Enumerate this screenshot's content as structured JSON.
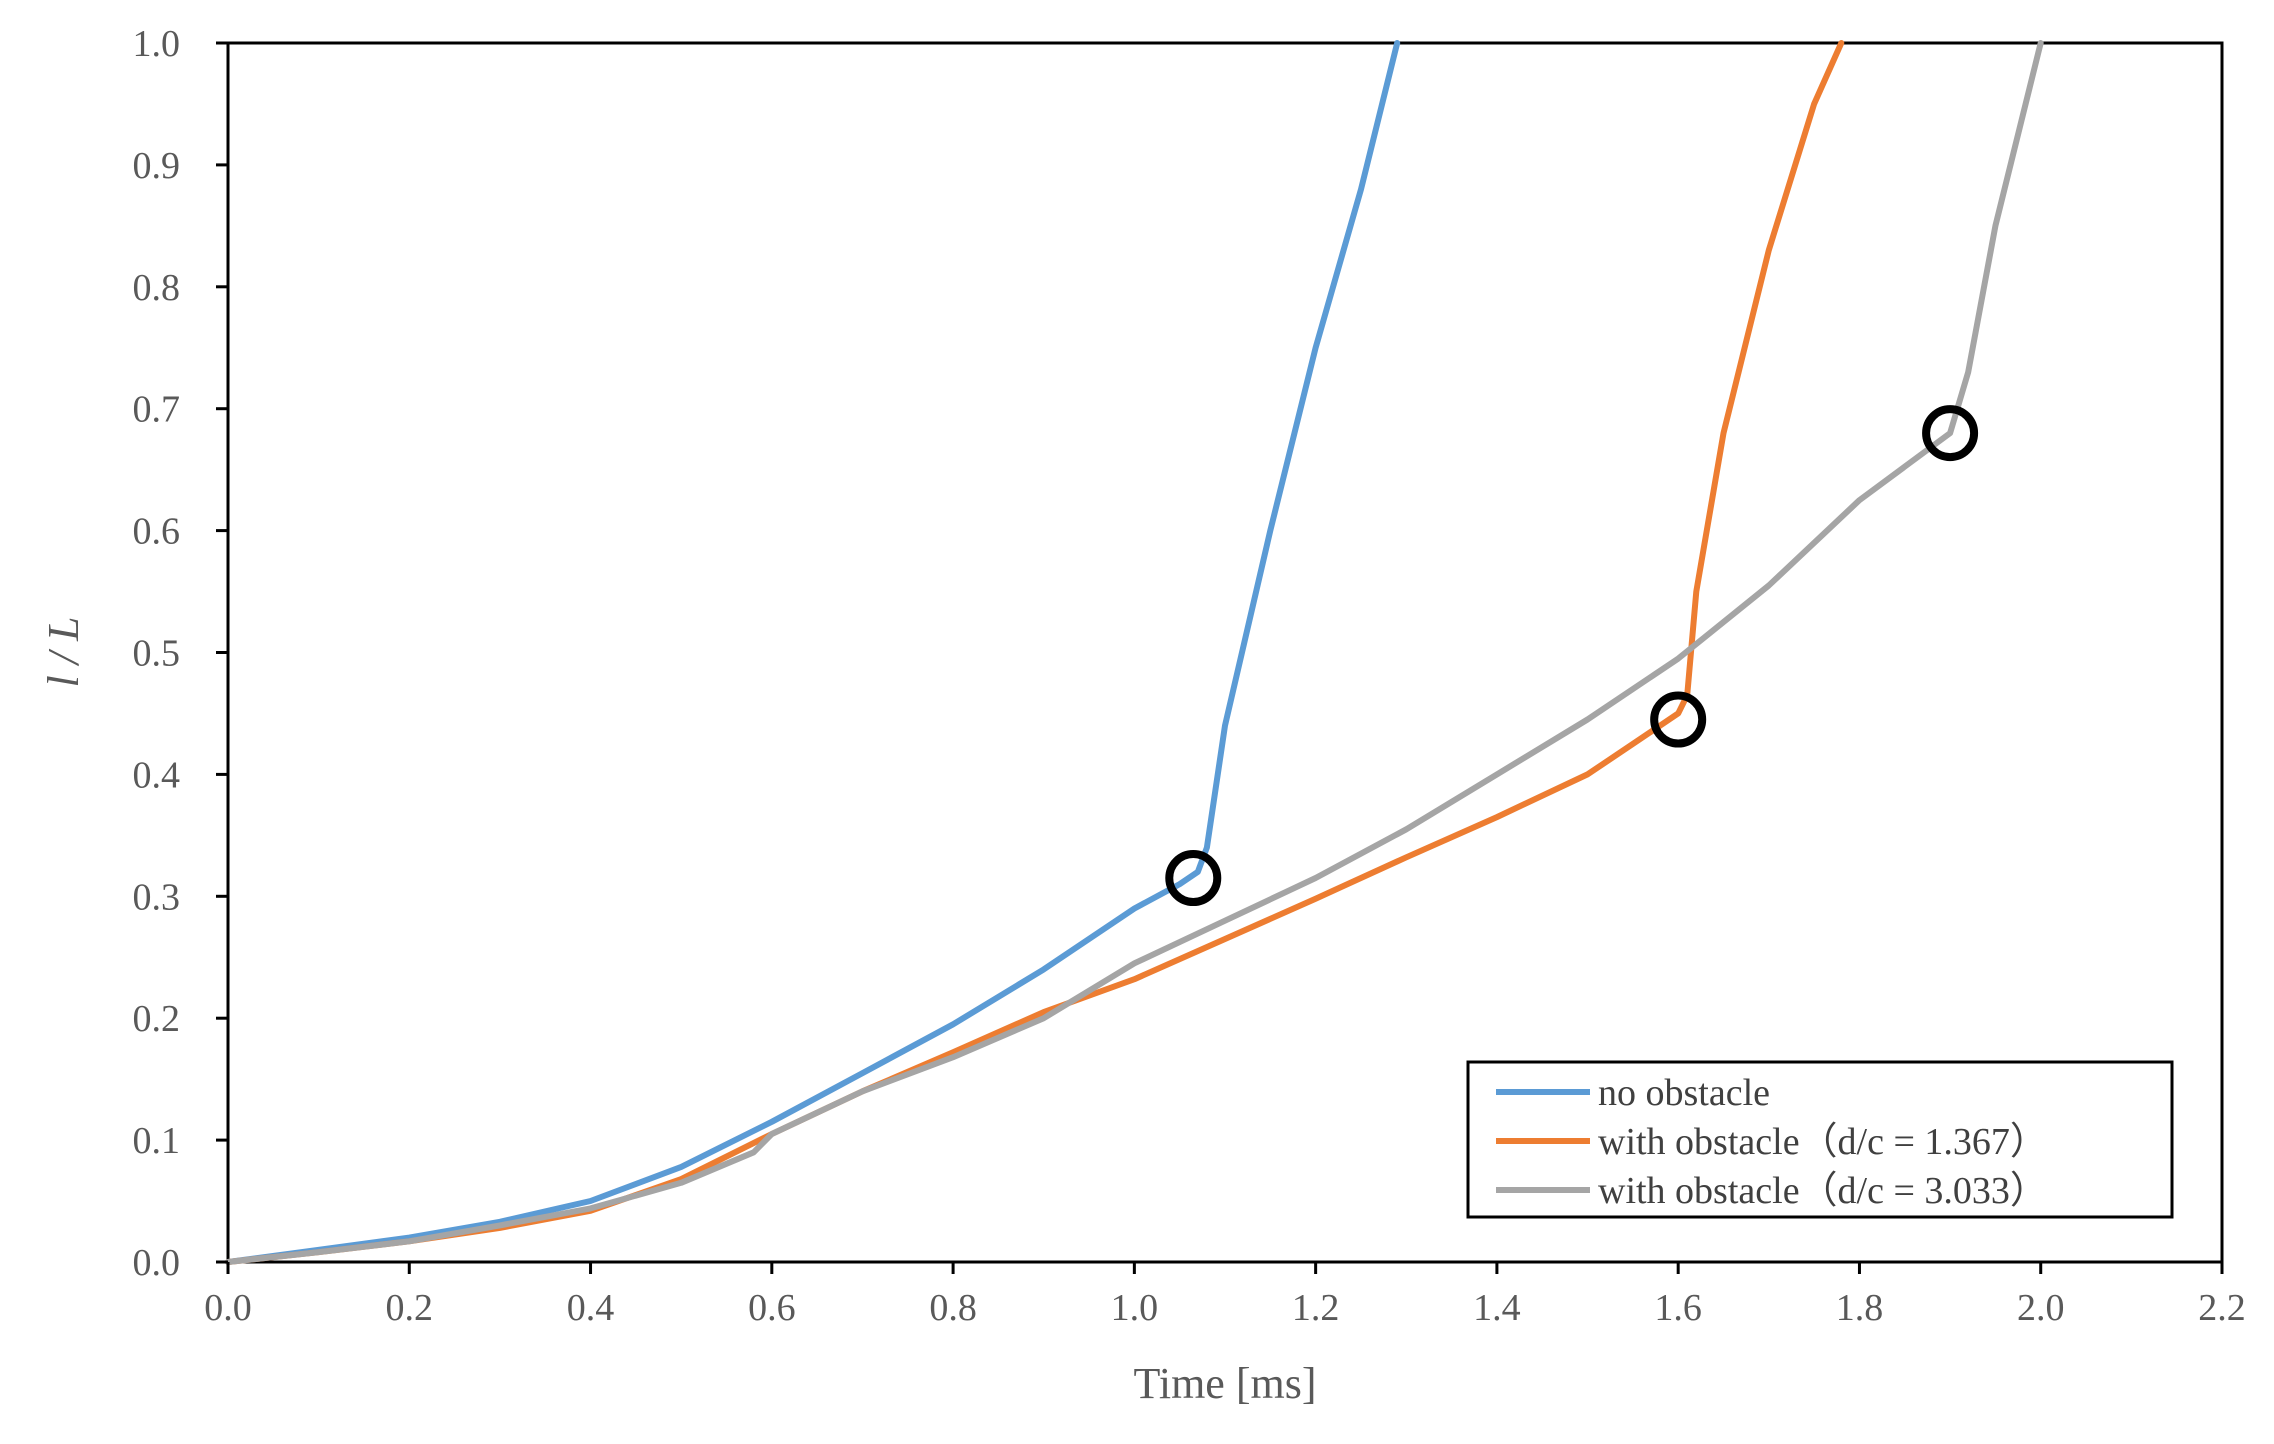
{
  "chart_data": {
    "type": "line",
    "xlabel": "Time [ms]",
    "ylabel": "l / L",
    "xlim": [
      0.0,
      2.2
    ],
    "ylim": [
      0.0,
      1.0
    ],
    "x_ticks": [
      "0.0",
      "0.2",
      "0.4",
      "0.6",
      "0.8",
      "1.0",
      "1.2",
      "1.4",
      "1.6",
      "1.8",
      "2.0",
      "2.2"
    ],
    "y_ticks": [
      "0.0",
      "0.1",
      "0.2",
      "0.3",
      "0.4",
      "0.5",
      "0.6",
      "0.7",
      "0.8",
      "0.9",
      "1.0"
    ],
    "grid": false,
    "legend_position": "bottom-right",
    "series": [
      {
        "name": "no obstacle",
        "color": "#5B9BD5",
        "x": [
          0.0,
          0.1,
          0.2,
          0.3,
          0.4,
          0.5,
          0.6,
          0.7,
          0.8,
          0.9,
          1.0,
          1.05,
          1.07,
          1.08,
          1.1,
          1.15,
          1.2,
          1.25,
          1.29
        ],
        "y": [
          0.0,
          0.01,
          0.02,
          0.033,
          0.05,
          0.078,
          0.115,
          0.155,
          0.195,
          0.24,
          0.29,
          0.31,
          0.32,
          0.34,
          0.44,
          0.6,
          0.75,
          0.88,
          1.0
        ]
      },
      {
        "name": "with obstacle（d/c = 1.367）",
        "color": "#ED7D31",
        "x": [
          0.0,
          0.1,
          0.2,
          0.3,
          0.4,
          0.5,
          0.6,
          0.7,
          0.8,
          0.9,
          1.0,
          1.1,
          1.2,
          1.3,
          1.4,
          1.5,
          1.55,
          1.6,
          1.61,
          1.62,
          1.65,
          1.7,
          1.75,
          1.78
        ],
        "y": [
          0.0,
          0.008,
          0.017,
          0.028,
          0.042,
          0.068,
          0.105,
          0.14,
          0.172,
          0.205,
          0.232,
          0.265,
          0.298,
          0.332,
          0.365,
          0.4,
          0.425,
          0.45,
          0.465,
          0.55,
          0.68,
          0.83,
          0.95,
          1.0
        ]
      },
      {
        "name": "with obstacle（d/c = 3.033）",
        "color": "#A5A5A5",
        "x": [
          0.0,
          0.1,
          0.2,
          0.3,
          0.4,
          0.5,
          0.58,
          0.6,
          0.7,
          0.8,
          0.9,
          1.0,
          1.1,
          1.2,
          1.3,
          1.4,
          1.5,
          1.6,
          1.7,
          1.8,
          1.9,
          1.92,
          1.95,
          2.0
        ],
        "y": [
          0.0,
          0.008,
          0.017,
          0.03,
          0.044,
          0.065,
          0.09,
          0.105,
          0.14,
          0.168,
          0.2,
          0.245,
          0.28,
          0.315,
          0.355,
          0.4,
          0.445,
          0.495,
          0.555,
          0.625,
          0.68,
          0.73,
          0.85,
          1.0
        ]
      }
    ],
    "markers": [
      {
        "x": 1.065,
        "y": 0.315
      },
      {
        "x": 1.6,
        "y": 0.445
      },
      {
        "x": 1.9,
        "y": 0.68
      }
    ]
  }
}
